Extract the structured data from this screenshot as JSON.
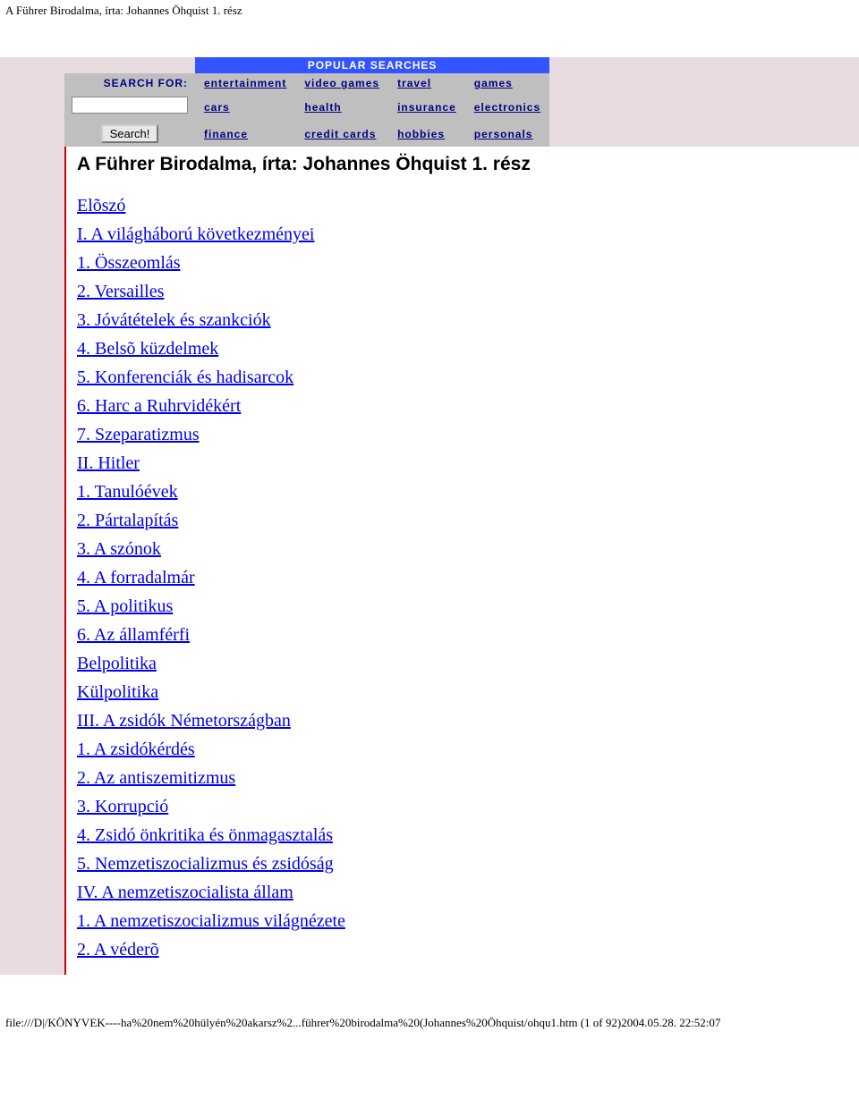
{
  "header_text": "A Führer Birodalma, írta: Johannes Öhquist 1. rész",
  "colors": {
    "page_bg": "#e8dce0",
    "popular_header_bg": "#3355ff",
    "popular_header_fg": "#ffffff",
    "search_cell_bg": "#bfbfbf",
    "link_color": "#000080",
    "toc_link_color": "#0000ee",
    "doc_border": "#cc0000",
    "doc_title_color": "#000000"
  },
  "search": {
    "label": "SEARCH FOR:",
    "button": "Search!",
    "input_value": ""
  },
  "popular": {
    "header": "POPULAR SEARCHES",
    "items": [
      [
        "entertainment",
        "video games",
        "travel",
        "games"
      ],
      [
        "cars",
        "health",
        "insurance",
        "electronics"
      ],
      [
        "finance",
        "credit cards",
        "hobbies",
        "personals"
      ]
    ]
  },
  "doc": {
    "title": "A Führer Birodalma, írta: Johannes Öhquist 1. rész",
    "toc": [
      "Elõszó ",
      "I. A világháború következményei",
      "1. Összeomlás",
      "2. Versailles",
      "3. Jóvátételek és szankciók",
      "4. Belsõ küzdelmek",
      "5. Konferenciák és hadisarcok",
      "6. Harc a Ruhrvidékért",
      "7. Szeparatizmus",
      "II. Hitler",
      "1. Tanulóévek",
      "2. Pártalapítás",
      "3. A szónok",
      "4. A forradalmár",
      "5. A politikus",
      "6. Az államférfi",
      "Belpolitika",
      "Külpolitika",
      "III. A zsidók Németországban",
      "1. A zsidókérdés",
      "2. Az antiszemitizmus",
      "3. Korrupció",
      "4. Zsidó önkritika és önmagasztalás",
      "5. Nemzetiszocializmus és zsidóság",
      "IV. A nemzetiszocialista állam",
      "1. A nemzetiszocializmus világnézete",
      "2. A véderõ"
    ]
  },
  "footer_text": "file:///D|/KÖNYVEK----ha%20nem%20hülyén%20akarsz%2...führer%20birodalma%20(Johannes%20Öhquist/ohqu1.htm (1 of 92)2004.05.28. 22:52:07"
}
